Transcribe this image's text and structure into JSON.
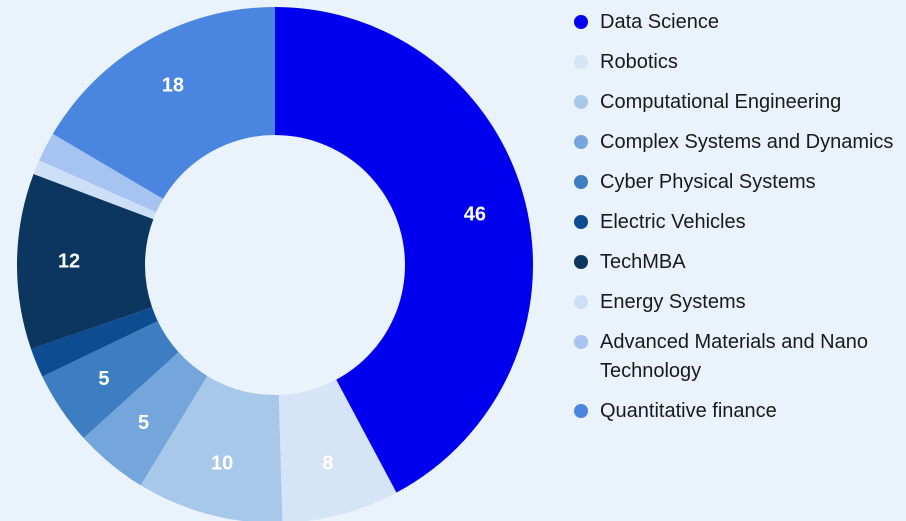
{
  "chart_data": {
    "type": "donut",
    "categories": [
      "Data Science",
      "Robotics",
      "Computational Engineering",
      "Complex Systems and Dynamics",
      "Cyber Physical Systems",
      "Electric Vehicles",
      "TechMBA",
      "Energy Systems",
      "Advanced Materials and Nano Technology",
      "Quantitative finance"
    ],
    "values": [
      46,
      8,
      10,
      5,
      5,
      2,
      12,
      1,
      2,
      18
    ],
    "colors": [
      "#0000ee",
      "#d5e5f7",
      "#a8c8ea",
      "#74a6db",
      "#3d7ec3",
      "#0d4c91",
      "#0a3660",
      "#cddff7",
      "#a6c3f2",
      "#4a86e0"
    ],
    "legend": "right"
  }
}
